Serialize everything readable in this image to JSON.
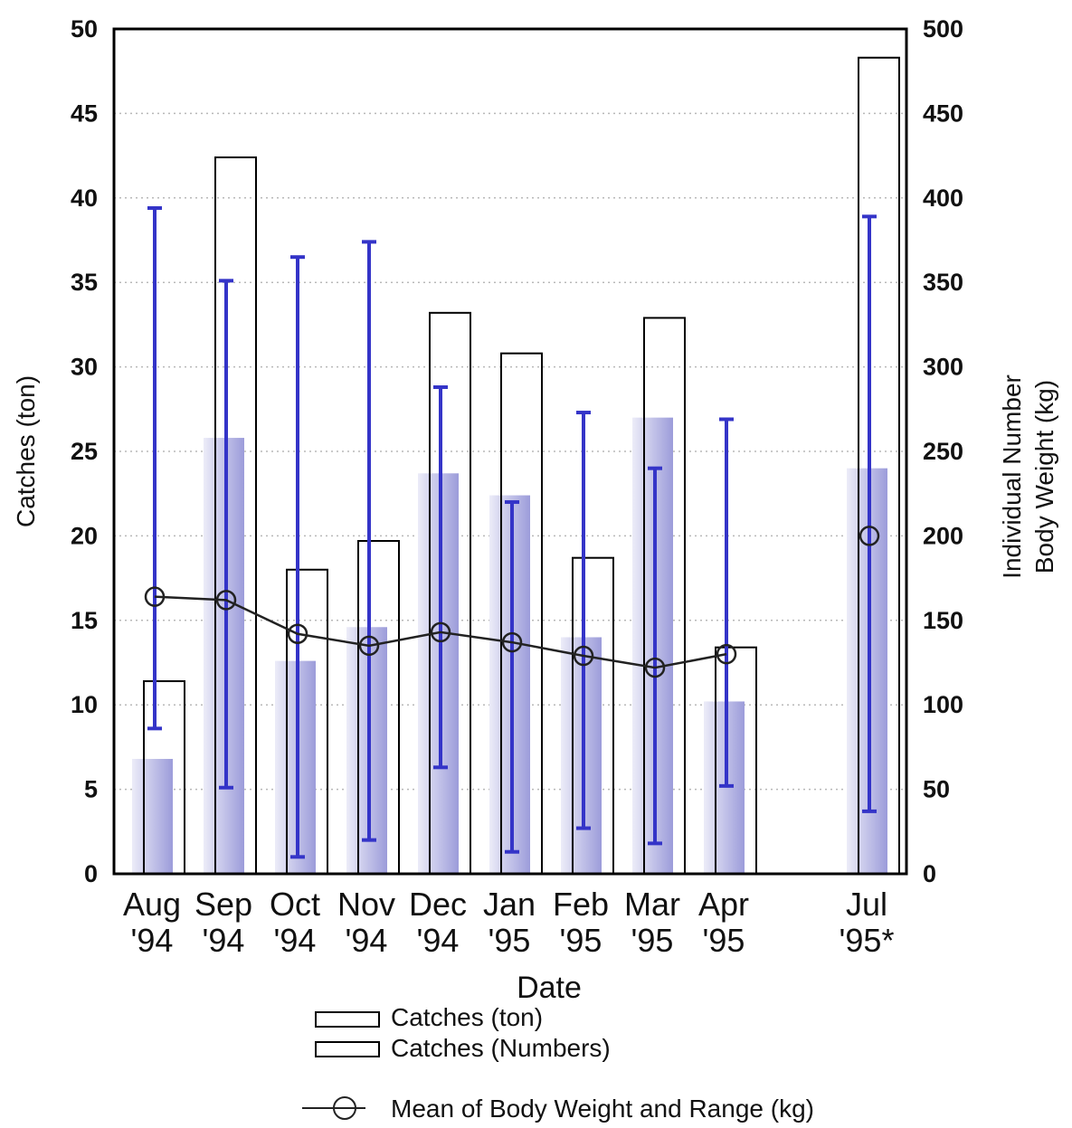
{
  "chart_data": {
    "type": "bar",
    "categories": [
      [
        "Aug",
        "'94"
      ],
      [
        "Sep",
        "'94"
      ],
      [
        "Oct",
        "'94"
      ],
      [
        "Nov",
        "'94"
      ],
      [
        "Dec",
        "'94"
      ],
      [
        "Jan",
        "'95"
      ],
      [
        "Feb",
        "'95"
      ],
      [
        "Mar",
        "'95"
      ],
      [
        "Apr",
        "'95"
      ],
      [
        "Jul",
        "'95*"
      ]
    ],
    "category_slots": [
      0,
      1,
      2,
      3,
      4,
      5,
      6,
      7,
      8,
      10
    ],
    "xlabel": "Date",
    "ylabel_left": "Catches (ton)",
    "ylabel_right": [
      "Individual Number",
      "Body Weight (kg)"
    ],
    "ylim_left": [
      0,
      50
    ],
    "ylim_right": [
      0,
      500
    ],
    "yticks_left": [
      0,
      5,
      10,
      15,
      20,
      25,
      30,
      35,
      40,
      45,
      50
    ],
    "yticks_right": [
      0,
      50,
      100,
      150,
      200,
      250,
      300,
      350,
      400,
      450,
      500
    ],
    "series": [
      {
        "name": "Catches (ton)",
        "style": "outline-bar",
        "axis": "left",
        "values": [
          11.4,
          42.4,
          18.0,
          19.7,
          33.2,
          30.8,
          18.7,
          32.9,
          13.4,
          48.3
        ]
      },
      {
        "name": "Catches (Numbers)",
        "style": "gradient-bar",
        "axis": "right",
        "values": [
          68,
          258,
          126,
          146,
          237,
          224,
          140,
          270,
          102,
          240
        ]
      },
      {
        "name": "Mean of Body Weight and Range (kg)",
        "style": "line-circle-errorbar",
        "axis": "right",
        "values": [
          164,
          162,
          142,
          135,
          143,
          137,
          129,
          122,
          130,
          200
        ],
        "min": [
          86,
          51,
          10,
          20,
          63,
          13,
          27,
          18,
          52,
          37
        ],
        "max": [
          394,
          351,
          365,
          374,
          288,
          220,
          273,
          240,
          269,
          389
        ],
        "line_breaks_after": [
          8
        ]
      }
    ],
    "grid": "horizontal-dotted",
    "legend_position": "bottom"
  },
  "colors": {
    "error_bar": "#3434c8",
    "mean_line": "#222222",
    "bar_outline": "#000000",
    "gradient_light": "#ececf8",
    "gradient_dark": "#9c9cda",
    "grid": "#b8b8b8"
  }
}
